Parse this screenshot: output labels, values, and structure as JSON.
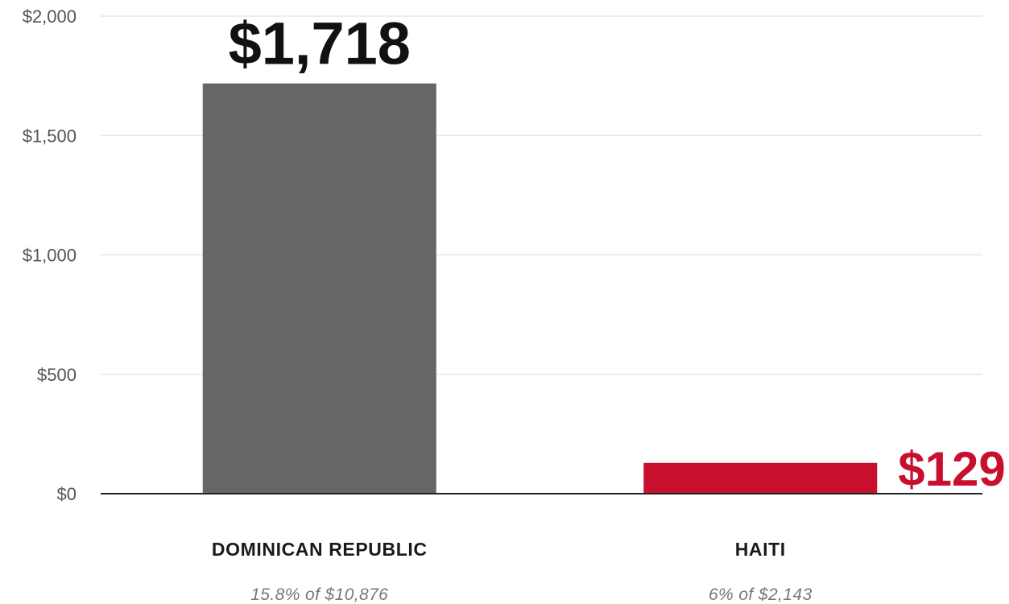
{
  "chart_data": {
    "type": "bar",
    "categories": [
      "DOMINICAN REPUBLIC",
      "HAITI"
    ],
    "subtitles": [
      "15.8% of $10,876",
      "6% of $2,143"
    ],
    "values": [
      1718,
      129
    ],
    "value_labels": [
      "$1,718",
      "$129"
    ],
    "bar_colors": [
      "#666666",
      "#c8102e"
    ],
    "label_colors": [
      "#111111",
      "#c8102e"
    ],
    "ylim": [
      0,
      2000
    ],
    "yticks": [
      0,
      500,
      1000,
      1500,
      2000
    ],
    "ytick_labels": [
      "$0",
      "$500",
      "$1,000",
      "$1,500",
      "$2,000"
    ],
    "grid": true,
    "legend": "none"
  }
}
